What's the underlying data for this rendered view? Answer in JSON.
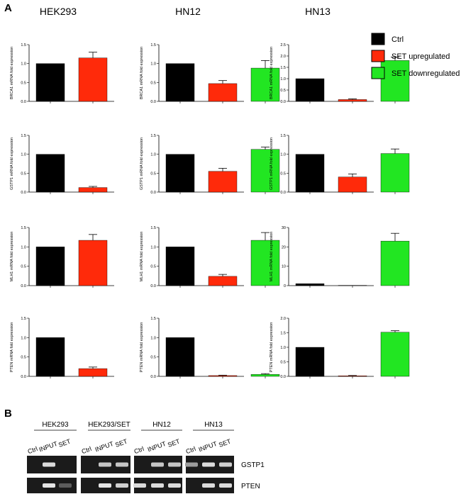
{
  "panel_a_label": "A",
  "panel_b_label": "B",
  "column_titles": [
    "HEK293",
    "HN12",
    "HN13"
  ],
  "legend": [
    {
      "label": "Ctrl",
      "color": "#000000"
    },
    {
      "label": "SET upregulated",
      "color": "#ff2a0a"
    },
    {
      "label": "SET downregulated",
      "color": "#22e622"
    }
  ],
  "colors": {
    "ctrl": "#000000",
    "up": "#ff2a0a",
    "down": "#22e622"
  },
  "chart_data": [
    {
      "type": "bar",
      "cell_line": "HEK293",
      "ylabel": "BRCA1 mRNA fold expression",
      "ylim": [
        0,
        1.5
      ],
      "yticks": [
        "0.0",
        "0.5",
        "1.0",
        "1.5"
      ],
      "values": [
        1.0,
        1.15
      ],
      "errors": [
        0,
        0.15
      ],
      "colors": [
        "ctrl",
        "up"
      ]
    },
    {
      "type": "bar",
      "cell_line": "HN12",
      "ylabel": "BRCA1 mRNA fold expression",
      "ylim": [
        0,
        1.5
      ],
      "yticks": [
        "0.0",
        "0.5",
        "1.0",
        "1.5"
      ],
      "values": [
        1.0,
        0.47,
        0.88
      ],
      "errors": [
        0,
        0.08,
        0.2
      ],
      "colors": [
        "ctrl",
        "up",
        "down"
      ]
    },
    {
      "type": "bar",
      "cell_line": "HN13",
      "ylabel": "BRCA1 mRNA fold expression",
      "ylim": [
        0,
        2.5
      ],
      "yticks": [
        "0.0",
        "0.5",
        "1.0",
        "1.5",
        "2.0",
        "2.5"
      ],
      "values": [
        1.0,
        0.08,
        1.8
      ],
      "errors": [
        0,
        0.03,
        0.15
      ],
      "colors": [
        "ctrl",
        "up",
        "down"
      ]
    },
    {
      "type": "bar",
      "cell_line": "HEK293",
      "ylabel": "GSTP1 mRNA fold expression",
      "ylim": [
        0,
        1.5
      ],
      "yticks": [
        "0.0",
        "0.5",
        "1.0",
        "1.5"
      ],
      "values": [
        1.0,
        0.12
      ],
      "errors": [
        0,
        0.03
      ],
      "colors": [
        "ctrl",
        "up"
      ]
    },
    {
      "type": "bar",
      "cell_line": "HN12",
      "ylabel": "GSTP1 mRNA fold expression",
      "ylim": [
        0,
        1.5
      ],
      "yticks": [
        "0.0",
        "0.5",
        "1.0",
        "1.5"
      ],
      "values": [
        1.0,
        0.55,
        1.13
      ],
      "errors": [
        0,
        0.08,
        0.06
      ],
      "colors": [
        "ctrl",
        "up",
        "down"
      ]
    },
    {
      "type": "bar",
      "cell_line": "HN13",
      "ylabel": "GSTP1 mRNA fold expression",
      "ylim": [
        0,
        1.5
      ],
      "yticks": [
        "0.0",
        "0.5",
        "1.0",
        "1.5"
      ],
      "values": [
        1.0,
        0.4,
        1.02
      ],
      "errors": [
        0,
        0.08,
        0.12
      ],
      "colors": [
        "ctrl",
        "up",
        "down"
      ]
    },
    {
      "type": "bar",
      "cell_line": "HEK293",
      "ylabel": "MLH1 mRNA fold expression",
      "ylim": [
        0,
        1.5
      ],
      "yticks": [
        "0.0",
        "0.5",
        "1.0",
        "1.5"
      ],
      "values": [
        1.0,
        1.17
      ],
      "errors": [
        0,
        0.15
      ],
      "colors": [
        "ctrl",
        "up"
      ]
    },
    {
      "type": "bar",
      "cell_line": "HN12",
      "ylabel": "MLH1 mRNA fold expression",
      "ylim": [
        0,
        1.5
      ],
      "yticks": [
        "0.0",
        "0.5",
        "1.0",
        "1.5"
      ],
      "values": [
        1.0,
        0.24,
        1.17
      ],
      "errors": [
        0,
        0.05,
        0.2
      ],
      "colors": [
        "ctrl",
        "up",
        "down"
      ]
    },
    {
      "type": "bar",
      "cell_line": "HN13",
      "ylabel": "MLH1 mRNA fold expression",
      "ylim": [
        0,
        30
      ],
      "yticks": [
        "0",
        "10",
        "20",
        "30"
      ],
      "values": [
        1.0,
        0.15,
        23
      ],
      "errors": [
        0,
        0,
        4
      ],
      "colors": [
        "ctrl",
        "up",
        "down"
      ]
    },
    {
      "type": "bar",
      "cell_line": "HEK293",
      "ylabel": "PTEN mRNA fold expression",
      "ylim": [
        0,
        1.5
      ],
      "yticks": [
        "0.0",
        "0.5",
        "1.0",
        "1.5"
      ],
      "values": [
        1.0,
        0.2
      ],
      "errors": [
        0,
        0.04
      ],
      "colors": [
        "ctrl",
        "up"
      ]
    },
    {
      "type": "bar",
      "cell_line": "HN12",
      "ylabel": "PTEN mRNA fold expression",
      "ylim": [
        0,
        1.5
      ],
      "yticks": [
        "0.0",
        "0.5",
        "1.0",
        "1.5"
      ],
      "values": [
        1.0,
        0.02,
        0.05
      ],
      "errors": [
        0,
        0.01,
        0.02
      ],
      "colors": [
        "ctrl",
        "up",
        "down"
      ]
    },
    {
      "type": "bar",
      "cell_line": "HN13",
      "ylabel": "PTEN mRNA fold expression",
      "ylim": [
        0,
        2.0
      ],
      "yticks": [
        "0.0",
        "0.5",
        "1.0",
        "1.5",
        "2.0"
      ],
      "values": [
        1.0,
        0.02,
        1.52
      ],
      "errors": [
        0,
        0.01,
        0.05
      ],
      "colors": [
        "ctrl",
        "up",
        "down"
      ]
    }
  ],
  "gel": {
    "groups": [
      {
        "name": "HEK293",
        "lanes": [
          "Ctrl",
          "INPUT",
          "SET"
        ]
      },
      {
        "name": "HEK293/SET",
        "lanes": [
          "Ctrl",
          "INPUT",
          "SET"
        ]
      },
      {
        "name": "HN12",
        "lanes": [
          "Ctrl",
          "INPUT",
          "SET"
        ]
      },
      {
        "name": "HN13",
        "lanes": [
          "Ctrl",
          "INPUT",
          "SET"
        ]
      }
    ],
    "genes": [
      "GSTP1",
      "PTEN"
    ],
    "band_intensity": {
      "GSTP1": [
        [
          0,
          0.85,
          0
        ],
        [
          0,
          0.75,
          0.75
        ],
        [
          0,
          0.75,
          0.75
        ],
        [
          0.55,
          0.85,
          0.8
        ]
      ],
      "PTEN": [
        [
          0,
          0.9,
          0.25
        ],
        [
          0,
          0.9,
          0.8
        ],
        [
          0.85,
          0.85,
          0.85
        ],
        [
          0,
          0.85,
          0.85
        ]
      ]
    }
  }
}
